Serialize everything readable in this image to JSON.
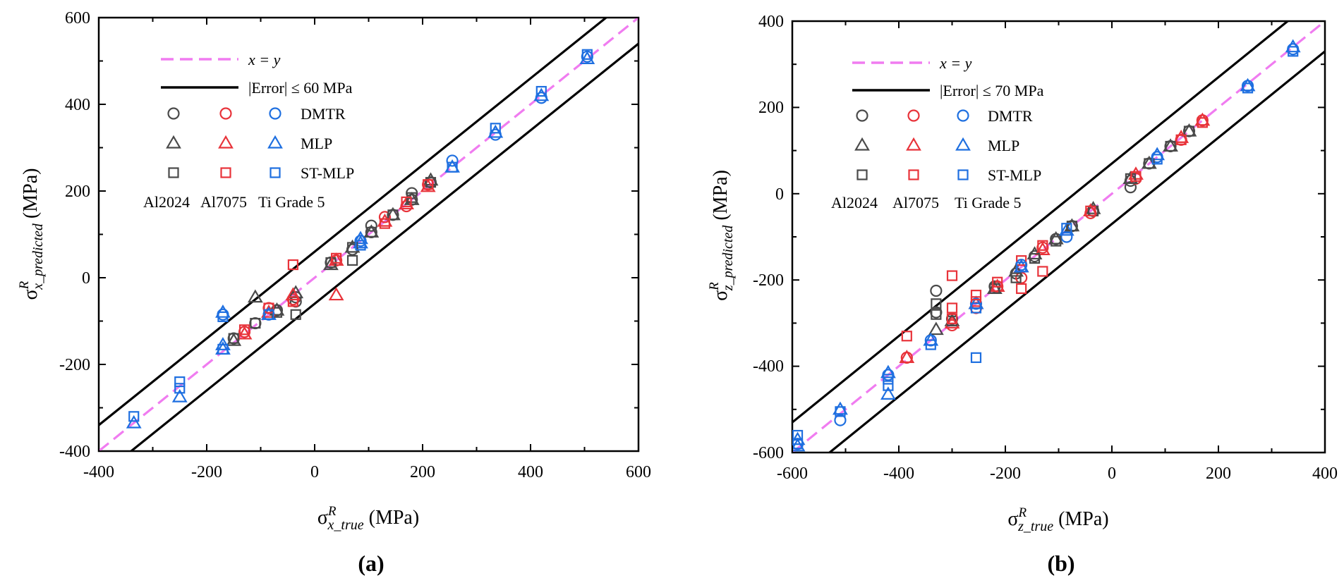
{
  "charts": [
    {
      "id": "a",
      "panel_label": "(a)",
      "y_axis_title": {
        "main": "σ",
        "sup": "R",
        "sub": "x_predicted",
        "unit": " (MPa)"
      },
      "x_axis_title": {
        "main": "σ",
        "sup": "R",
        "sub": "x_true",
        "unit": " (MPa)"
      },
      "x_ticks": [
        "-400",
        "-200",
        "0",
        "200",
        "400",
        "600"
      ],
      "y_ticks": [
        "-400",
        "-200",
        "0",
        "200",
        "400",
        "600"
      ],
      "legend": {
        "line_xy": "x = y",
        "line_err": "|Error| ≤ 60 MPa",
        "rows": [
          "DMTR",
          "MLP",
          "ST-MLP"
        ],
        "cols": [
          "Al2024",
          "Al7075",
          "Ti Grade 5"
        ]
      }
    },
    {
      "id": "b",
      "panel_label": "(b)",
      "y_axis_title": {
        "main": "σ",
        "sup": "R",
        "sub": "z_predicted",
        "unit": " (MPa)"
      },
      "x_axis_title": {
        "main": "σ",
        "sup": "R",
        "sub": "z_true",
        "unit": " (MPa)"
      },
      "x_ticks": [
        "-600",
        "-400",
        "-200",
        "0",
        "200",
        "400"
      ],
      "y_ticks": [
        "-600",
        "-400",
        "-200",
        "0",
        "200",
        "400"
      ],
      "legend": {
        "line_xy": "x = y",
        "line_err": "|Error| ≤ 70 MPa",
        "rows": [
          "DMTR",
          "MLP",
          "ST-MLP"
        ],
        "cols": [
          "Al2024",
          "Al7075",
          "Ti Grade 5"
        ]
      }
    }
  ],
  "colors": {
    "Al2024": "#4a4a4a",
    "Al7075": "#e8333a",
    "Ti Grade 5": "#1e6fe0",
    "identity_line": "#f07cf0",
    "error_band": "#000000"
  },
  "chart_data": [
    {
      "type": "scatter",
      "panel": "a",
      "xlim": [
        -400,
        600
      ],
      "ylim": [
        -400,
        600
      ],
      "error_band": 60,
      "reference_line": "x = y",
      "series": [
        {
          "name": "DMTR",
          "material": "Al2024",
          "marker": "circle",
          "points": [
            [
              -150,
              -140
            ],
            [
              -110,
              -105
            ],
            [
              -70,
              -75
            ],
            [
              -35,
              -45
            ],
            [
              -35,
              -55
            ],
            [
              30,
              35
            ],
            [
              70,
              65
            ],
            [
              105,
              105
            ],
            [
              105,
              120
            ],
            [
              145,
              145
            ],
            [
              180,
              180
            ],
            [
              180,
              195
            ],
            [
              215,
              220
            ]
          ]
        },
        {
          "name": "DMTR",
          "material": "Al7075",
          "marker": "circle",
          "points": [
            [
              -130,
              -125
            ],
            [
              -85,
              -70
            ],
            [
              -40,
              -50
            ],
            [
              40,
              40
            ],
            [
              130,
              140
            ],
            [
              170,
              165
            ],
            [
              210,
              215
            ]
          ]
        },
        {
          "name": "DMTR",
          "material": "Ti Grade 5",
          "marker": "circle",
          "points": [
            [
              -170,
              -85
            ],
            [
              -85,
              -85
            ],
            [
              85,
              85
            ],
            [
              255,
              270
            ],
            [
              335,
              330
            ],
            [
              420,
              415
            ],
            [
              505,
              510
            ]
          ]
        },
        {
          "name": "MLP",
          "material": "Al2024",
          "marker": "triangle",
          "points": [
            [
              -150,
              -145
            ],
            [
              -110,
              -45
            ],
            [
              -70,
              -75
            ],
            [
              -35,
              -35
            ],
            [
              30,
              30
            ],
            [
              70,
              70
            ],
            [
              105,
              105
            ],
            [
              145,
              145
            ],
            [
              180,
              180
            ],
            [
              215,
              225
            ]
          ]
        },
        {
          "name": "MLP",
          "material": "Al7075",
          "marker": "triangle",
          "points": [
            [
              -130,
              -130
            ],
            [
              -85,
              -80
            ],
            [
              -40,
              -40
            ],
            [
              40,
              -40
            ],
            [
              40,
              40
            ],
            [
              130,
              130
            ],
            [
              170,
              170
            ],
            [
              210,
              210
            ]
          ]
        },
        {
          "name": "MLP",
          "material": "Ti Grade 5",
          "marker": "triangle",
          "points": [
            [
              -335,
              -335
            ],
            [
              -250,
              -275
            ],
            [
              -170,
              -165
            ],
            [
              -170,
              -155
            ],
            [
              -170,
              -80
            ],
            [
              -85,
              -85
            ],
            [
              85,
              80
            ],
            [
              85,
              90
            ],
            [
              255,
              255
            ],
            [
              335,
              335
            ],
            [
              420,
              420
            ],
            [
              505,
              505
            ]
          ]
        },
        {
          "name": "ST-MLP",
          "material": "Al2024",
          "marker": "square",
          "points": [
            [
              -150,
              -140
            ],
            [
              -110,
              -105
            ],
            [
              -70,
              -80
            ],
            [
              -35,
              -85
            ],
            [
              30,
              35
            ],
            [
              70,
              40
            ],
            [
              70,
              70
            ],
            [
              105,
              105
            ],
            [
              145,
              145
            ],
            [
              180,
              185
            ],
            [
              215,
              220
            ]
          ]
        },
        {
          "name": "ST-MLP",
          "material": "Al7075",
          "marker": "square",
          "points": [
            [
              -130,
              -120
            ],
            [
              -85,
              -70
            ],
            [
              -40,
              -55
            ],
            [
              -40,
              30
            ],
            [
              40,
              45
            ],
            [
              130,
              125
            ],
            [
              170,
              175
            ],
            [
              210,
              215
            ]
          ]
        },
        {
          "name": "ST-MLP",
          "material": "Ti Grade 5",
          "marker": "square",
          "points": [
            [
              -335,
              -320
            ],
            [
              -250,
              -255
            ],
            [
              -250,
              -240
            ],
            [
              -170,
              -165
            ],
            [
              -170,
              -90
            ],
            [
              -85,
              -85
            ],
            [
              85,
              75
            ],
            [
              255,
              255
            ],
            [
              335,
              345
            ],
            [
              420,
              430
            ],
            [
              505,
              515
            ]
          ]
        }
      ]
    },
    {
      "type": "scatter",
      "panel": "b",
      "xlim": [
        -600,
        400
      ],
      "ylim": [
        -600,
        400
      ],
      "error_band": 70,
      "reference_line": "x = y",
      "series": [
        {
          "name": "DMTR",
          "material": "Al2024",
          "marker": "circle",
          "points": [
            [
              -330,
              -225
            ],
            [
              -330,
              -275
            ],
            [
              -300,
              -290
            ],
            [
              -220,
              -215
            ],
            [
              -180,
              -185
            ],
            [
              -145,
              -145
            ],
            [
              -105,
              -105
            ],
            [
              -75,
              -75
            ],
            [
              -35,
              -40
            ],
            [
              35,
              15
            ],
            [
              35,
              30
            ],
            [
              70,
              70
            ],
            [
              110,
              110
            ],
            [
              145,
              145
            ]
          ]
        },
        {
          "name": "DMTR",
          "material": "Al7075",
          "marker": "circle",
          "points": [
            [
              -385,
              -380
            ],
            [
              -300,
              -305
            ],
            [
              -255,
              -265
            ],
            [
              -215,
              -215
            ],
            [
              -170,
              -195
            ],
            [
              -130,
              -125
            ],
            [
              -40,
              -45
            ],
            [
              45,
              35
            ],
            [
              130,
              125
            ],
            [
              170,
              170
            ]
          ]
        },
        {
          "name": "DMTR",
          "material": "Ti Grade 5",
          "marker": "circle",
          "points": [
            [
              -590,
              -580
            ],
            [
              -510,
              -525
            ],
            [
              -420,
              -420
            ],
            [
              -340,
              -340
            ],
            [
              -255,
              -255
            ],
            [
              -170,
              -165
            ],
            [
              -85,
              -100
            ],
            [
              85,
              85
            ],
            [
              255,
              250
            ],
            [
              340,
              335
            ]
          ]
        },
        {
          "name": "MLP",
          "material": "Al2024",
          "marker": "triangle",
          "points": [
            [
              -330,
              -315
            ],
            [
              -300,
              -295
            ],
            [
              -255,
              -255
            ],
            [
              -220,
              -220
            ],
            [
              -180,
              -180
            ],
            [
              -145,
              -140
            ],
            [
              -105,
              -105
            ],
            [
              -75,
              -75
            ],
            [
              -35,
              -35
            ],
            [
              35,
              35
            ],
            [
              70,
              70
            ],
            [
              110,
              110
            ],
            [
              145,
              145
            ]
          ]
        },
        {
          "name": "MLP",
          "material": "Al7075",
          "marker": "triangle",
          "points": [
            [
              -385,
              -380
            ],
            [
              -300,
              -300
            ],
            [
              -255,
              -255
            ],
            [
              -215,
              -215
            ],
            [
              -170,
              -170
            ],
            [
              -130,
              -130
            ],
            [
              -40,
              -40
            ],
            [
              45,
              45
            ],
            [
              130,
              130
            ],
            [
              170,
              170
            ]
          ]
        },
        {
          "name": "MLP",
          "material": "Ti Grade 5",
          "marker": "triangle",
          "points": [
            [
              -590,
              -585
            ],
            [
              -590,
              -570
            ],
            [
              -510,
              -500
            ],
            [
              -420,
              -465
            ],
            [
              -420,
              -415
            ],
            [
              -340,
              -340
            ],
            [
              -255,
              -255
            ],
            [
              -170,
              -170
            ],
            [
              -85,
              -85
            ],
            [
              85,
              90
            ],
            [
              255,
              250
            ],
            [
              340,
              340
            ]
          ]
        },
        {
          "name": "ST-MLP",
          "material": "Al2024",
          "marker": "square",
          "points": [
            [
              -330,
              -255
            ],
            [
              -330,
              -280
            ],
            [
              -300,
              -295
            ],
            [
              -220,
              -220
            ],
            [
              -180,
              -195
            ],
            [
              -145,
              -150
            ],
            [
              -105,
              -110
            ],
            [
              -75,
              -75
            ],
            [
              -35,
              -40
            ],
            [
              35,
              35
            ],
            [
              70,
              70
            ],
            [
              110,
              110
            ],
            [
              145,
              145
            ]
          ]
        },
        {
          "name": "ST-MLP",
          "material": "Al7075",
          "marker": "square",
          "points": [
            [
              -385,
              -330
            ],
            [
              -300,
              -190
            ],
            [
              -300,
              -265
            ],
            [
              -300,
              -290
            ],
            [
              -255,
              -235
            ],
            [
              -255,
              -250
            ],
            [
              -215,
              -205
            ],
            [
              -170,
              -155
            ],
            [
              -170,
              -220
            ],
            [
              -130,
              -120
            ],
            [
              -130,
              -180
            ],
            [
              -40,
              -40
            ],
            [
              45,
              40
            ],
            [
              130,
              125
            ],
            [
              170,
              165
            ]
          ]
        },
        {
          "name": "ST-MLP",
          "material": "Ti Grade 5",
          "marker": "square",
          "points": [
            [
              -590,
              -560
            ],
            [
              -590,
              -580
            ],
            [
              -510,
              -505
            ],
            [
              -420,
              -430
            ],
            [
              -420,
              -445
            ],
            [
              -340,
              -350
            ],
            [
              -255,
              -265
            ],
            [
              -255,
              -380
            ],
            [
              -170,
              -170
            ],
            [
              -85,
              -80
            ],
            [
              85,
              80
            ],
            [
              255,
              245
            ],
            [
              340,
              330
            ]
          ]
        }
      ]
    }
  ]
}
